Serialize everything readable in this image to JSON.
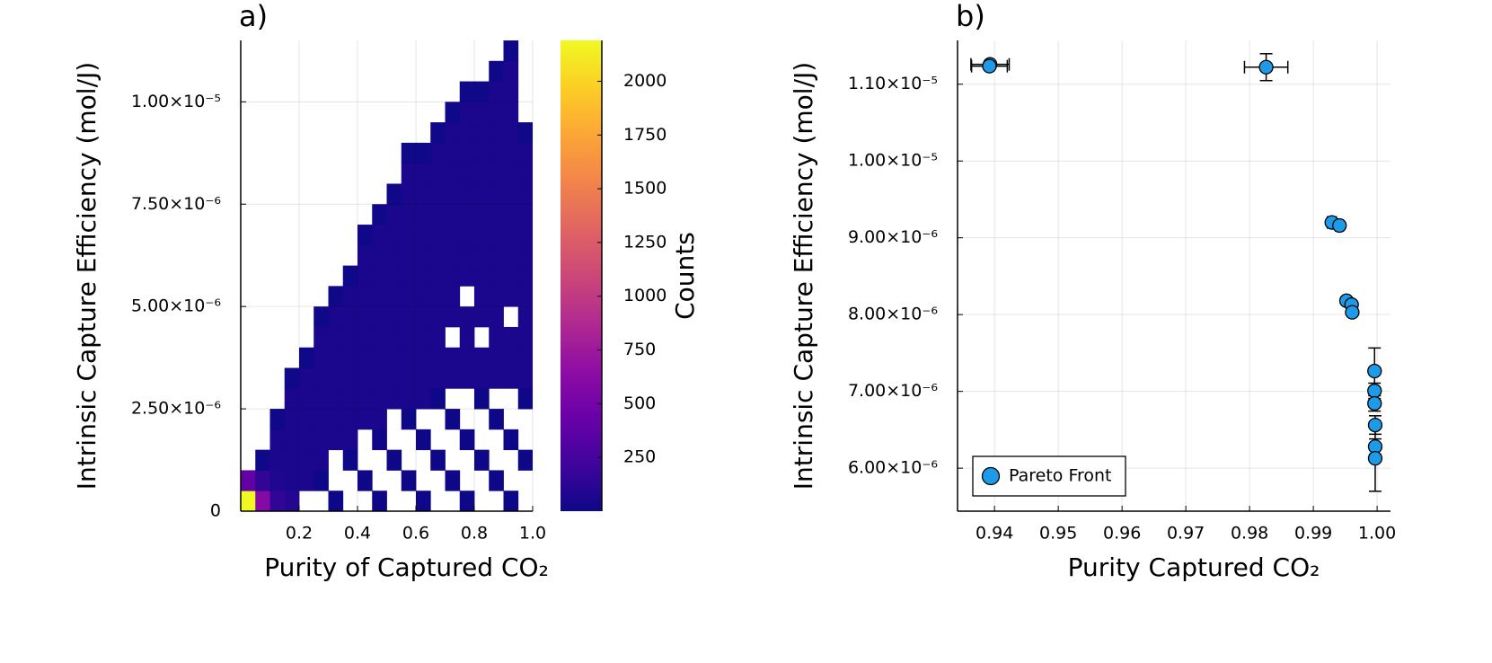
{
  "chart_data": [
    {
      "type": "heatmap",
      "title": "a)",
      "x_label": "Purity of Captured CO₂",
      "y_label": "Intrinsic Capture Efficiency (mol/J)",
      "xbins": [
        0,
        0.05,
        0.1,
        0.15,
        0.2,
        0.25,
        0.3,
        0.35,
        0.4,
        0.45,
        0.5,
        0.55,
        0.6,
        0.65,
        0.7,
        0.75,
        0.8,
        0.85,
        0.9,
        0.95,
        1
      ],
      "ybins": [
        0,
        5e-07,
        1e-06,
        1.5e-06,
        2e-06,
        2.5e-06,
        3e-06,
        3.5e-06,
        4e-06,
        4.5e-06,
        5e-06,
        5.5e-06,
        6e-06,
        6.5e-06,
        7e-06,
        7.5e-06,
        8e-06,
        8.5e-06,
        9e-06,
        9.5e-06,
        1e-05,
        1.05e-05,
        1.1e-05,
        1.15e-05
      ],
      "counts": [
        [
          2200,
          600,
          150,
          100,
          null,
          null,
          5,
          null,
          null,
          5,
          null,
          null,
          5,
          null,
          null,
          5,
          null,
          null,
          5,
          null
        ],
        [
          400,
          150,
          80,
          60,
          60,
          5,
          null,
          null,
          5,
          null,
          null,
          5,
          null,
          null,
          5,
          null,
          null,
          5,
          null,
          null
        ],
        [
          null,
          10,
          60,
          60,
          60,
          60,
          null,
          5,
          null,
          null,
          5,
          null,
          null,
          5,
          null,
          null,
          5,
          null,
          null,
          5
        ],
        [
          null,
          null,
          60,
          60,
          60,
          60,
          60,
          60,
          null,
          5,
          null,
          null,
          5,
          null,
          null,
          5,
          null,
          null,
          5,
          null
        ],
        [
          null,
          null,
          10,
          60,
          60,
          60,
          60,
          60,
          60,
          60,
          null,
          5,
          null,
          null,
          5,
          null,
          null,
          5,
          null,
          null
        ],
        [
          null,
          null,
          null,
          60,
          60,
          60,
          60,
          60,
          60,
          60,
          60,
          60,
          60,
          5,
          null,
          null,
          5,
          null,
          null,
          5
        ],
        [
          null,
          null,
          null,
          10,
          60,
          60,
          60,
          60,
          60,
          60,
          60,
          60,
          60,
          60,
          60,
          60,
          60,
          60,
          60,
          60
        ],
        [
          null,
          null,
          null,
          null,
          10,
          60,
          60,
          60,
          60,
          60,
          60,
          60,
          60,
          60,
          60,
          60,
          60,
          60,
          60,
          60
        ],
        [
          null,
          null,
          null,
          null,
          null,
          60,
          60,
          60,
          60,
          60,
          60,
          60,
          60,
          60,
          null,
          60,
          null,
          60,
          60,
          60
        ],
        [
          null,
          null,
          null,
          null,
          null,
          10,
          60,
          60,
          60,
          60,
          60,
          60,
          60,
          60,
          60,
          60,
          60,
          60,
          null,
          60
        ],
        [
          null,
          null,
          null,
          null,
          null,
          null,
          10,
          60,
          60,
          60,
          60,
          60,
          60,
          60,
          60,
          null,
          60,
          60,
          60,
          60
        ],
        [
          null,
          null,
          null,
          null,
          null,
          null,
          null,
          10,
          60,
          60,
          60,
          60,
          60,
          60,
          60,
          60,
          60,
          60,
          60,
          60
        ],
        [
          null,
          null,
          null,
          null,
          null,
          null,
          null,
          null,
          60,
          60,
          60,
          60,
          60,
          60,
          60,
          60,
          60,
          60,
          60,
          60
        ],
        [
          null,
          null,
          null,
          null,
          null,
          null,
          null,
          null,
          10,
          60,
          60,
          60,
          60,
          60,
          60,
          60,
          60,
          60,
          60,
          60
        ],
        [
          null,
          null,
          null,
          null,
          null,
          null,
          null,
          null,
          null,
          10,
          60,
          60,
          60,
          60,
          60,
          60,
          60,
          60,
          60,
          60
        ],
        [
          null,
          null,
          null,
          null,
          null,
          null,
          null,
          null,
          null,
          null,
          10,
          60,
          60,
          60,
          60,
          60,
          60,
          60,
          60,
          60
        ],
        [
          null,
          null,
          null,
          null,
          null,
          null,
          null,
          null,
          null,
          null,
          null,
          60,
          60,
          60,
          60,
          60,
          60,
          60,
          60,
          60
        ],
        [
          null,
          null,
          null,
          null,
          null,
          null,
          null,
          null,
          null,
          null,
          null,
          10,
          10,
          60,
          60,
          60,
          60,
          60,
          60,
          60
        ],
        [
          null,
          null,
          null,
          null,
          null,
          null,
          null,
          null,
          null,
          null,
          null,
          null,
          null,
          10,
          60,
          60,
          60,
          60,
          60,
          10
        ],
        [
          null,
          null,
          null,
          null,
          null,
          null,
          null,
          null,
          null,
          null,
          null,
          null,
          null,
          null,
          10,
          60,
          60,
          60,
          60,
          null
        ],
        [
          null,
          null,
          null,
          null,
          null,
          null,
          null,
          null,
          null,
          null,
          null,
          null,
          null,
          null,
          null,
          10,
          10,
          60,
          60,
          null
        ],
        [
          null,
          null,
          null,
          null,
          null,
          null,
          null,
          null,
          null,
          null,
          null,
          null,
          null,
          null,
          null,
          null,
          null,
          10,
          60,
          null
        ],
        [
          null,
          null,
          null,
          null,
          null,
          null,
          null,
          null,
          null,
          null,
          null,
          null,
          null,
          null,
          null,
          null,
          null,
          null,
          10,
          null
        ]
      ],
      "xlim": [
        0,
        1
      ],
      "ylim": [
        0,
        1.15e-05
      ],
      "xticks": [
        0.2,
        0.4,
        0.6,
        0.8,
        {
          "value": 1,
          "label": "1.0"
        }
      ],
      "yticks": [
        0,
        {
          "value": 2.5e-06,
          "label": "2.50×10⁻⁶"
        },
        {
          "value": 5e-06,
          "label": "5.00×10⁻⁶"
        },
        {
          "value": 7.5e-06,
          "label": "7.50×10⁻⁶"
        },
        {
          "value": 1e-05,
          "label": "1.00×10⁻⁵"
        }
      ],
      "grid": true,
      "colormap": [
        "#0d0887",
        "#41049d",
        "#6a00a8",
        "#8f0da4",
        "#b12a90",
        "#cc4778",
        "#e16462",
        "#f2844b",
        "#fca636",
        "#fcce25",
        "#f0f921"
      ],
      "colorbar": {
        "label": "Counts",
        "clim": [
          0,
          2190
        ],
        "ticks": [
          250,
          500,
          750,
          1000,
          1250,
          1500,
          1750,
          2000
        ]
      }
    },
    {
      "type": "scatter",
      "title": "b)",
      "x_label": "Purity Captured CO₂",
      "y_label": "Intrinsic Capture Efficiency (mol/J)",
      "series": [
        {
          "name": "Pareto Front",
          "color": "#1e9be8",
          "x": [
            0.9393,
            0.9392,
            0.9826,
            0.9929,
            0.9941,
            0.9952,
            0.996,
            0.9961,
            0.9996,
            0.9996,
            0.9996,
            0.9997,
            0.9997,
            0.9997
          ],
          "values": [
            1.1258e-05,
            1.1235e-05,
            1.1222e-05,
            9.2e-06,
            9.16e-06,
            8.18e-06,
            8.13e-06,
            8.03e-06,
            7.265e-06,
            7.007e-06,
            6.843e-06,
            6.562e-06,
            6.281e-06,
            6.129e-06
          ],
          "xerr": [
            0.003,
            0.0028,
            0.0034,
            0.0007,
            0.0006,
            0.0005,
            0.0005,
            0.0004,
            0.0003,
            0.0003,
            0.0003,
            0.0003,
            0.0003,
            0.0003
          ],
          "yerr": [
            3.5e-08,
            3e-08,
            1.75e-07,
            3e-08,
            3e-08,
            4e-08,
            4e-08,
            4e-08,
            3e-07,
            1e-07,
            1e-07,
            1.2e-07,
            1e-07,
            4.3e-07
          ]
        }
      ],
      "xlim": [
        0.9342,
        1.0021
      ],
      "ylim": [
        5.44e-06,
        1.157e-05
      ],
      "xticks": [
        0.94,
        0.95,
        0.96,
        0.97,
        0.98,
        0.99,
        {
          "value": 1,
          "label": "1.00"
        }
      ],
      "yticks": [
        {
          "value": 6e-06,
          "label": "6.00×10⁻⁶"
        },
        {
          "value": 7e-06,
          "label": "7.00×10⁻⁶"
        },
        {
          "value": 8e-06,
          "label": "8.00×10⁻⁶"
        },
        {
          "value": 9e-06,
          "label": "9.00×10⁻⁶"
        },
        {
          "value": 1e-05,
          "label": "1.00×10⁻⁵"
        },
        {
          "value": 1.1e-05,
          "label": "1.10×10⁻⁵"
        }
      ],
      "grid": true,
      "legend": "lower left"
    }
  ]
}
